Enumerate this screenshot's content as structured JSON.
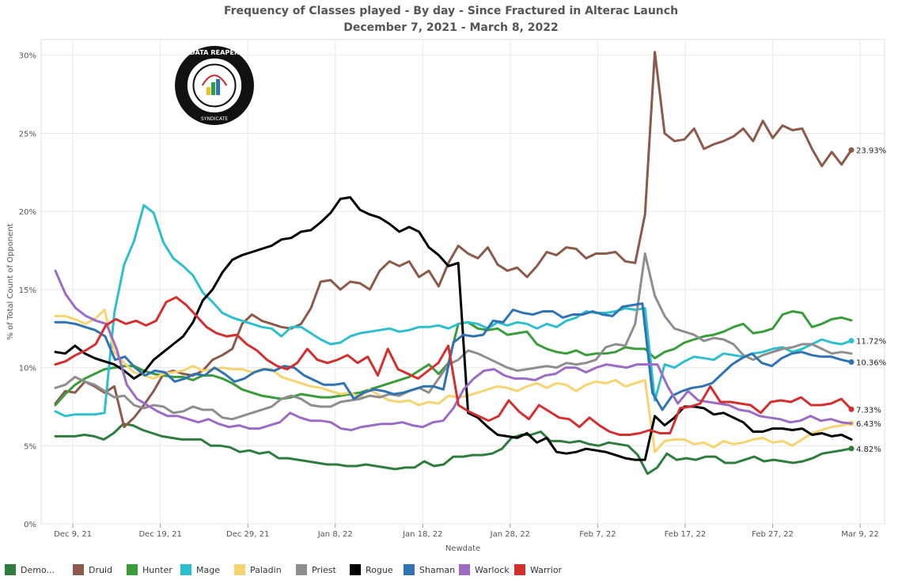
{
  "chart_data": {
    "type": "line",
    "title": "Frequency of Classes played - By day - Since Fractured in Alterac Launch",
    "subtitle": "December 7, 2021 - March 8, 2022",
    "xlabel": "Newdate",
    "ylabel": "% of Total Count of Opponent",
    "x_start": "2021-12-07",
    "x_end": "2022-03-08",
    "x_ticks": [
      "Dec 9, 21",
      "Dec 19, 21",
      "Dec 29, 21",
      "Jan 8, 22",
      "Jan 18, 22",
      "Jan 28, 22",
      "Feb 7, 22",
      "Feb 17, 22",
      "Feb 27, 22",
      "Mar 9, 22"
    ],
    "y_ticks": [
      "0%",
      "5%",
      "10%",
      "15%",
      "20%",
      "25%",
      "30%"
    ],
    "ylim": [
      0,
      31
    ],
    "grid": true,
    "legend_position": "bottom",
    "series": [
      {
        "name": "Demo...",
        "color": "#2e7d3e",
        "end_label": "4.82%",
        "values": [
          5.6,
          5.6,
          5.6,
          5.7,
          5.6,
          5.4,
          5.8,
          6.4,
          6.3,
          6.0,
          5.8,
          5.6,
          5.5,
          5.4,
          5.4,
          5.4,
          5.0,
          5.0,
          4.9,
          4.6,
          4.7,
          4.5,
          4.6,
          4.2,
          4.2,
          4.1,
          4.0,
          3.9,
          3.8,
          3.8,
          3.7,
          3.7,
          3.8,
          3.7,
          3.6,
          3.5,
          3.6,
          3.6,
          4.0,
          3.7,
          3.8,
          4.3,
          4.3,
          4.4,
          4.4,
          4.5,
          4.8,
          5.5,
          5.7,
          5.7,
          5.9,
          5.3,
          5.3,
          5.2,
          5.3,
          5.1,
          5.0,
          5.2,
          5.1,
          5.0,
          4.4,
          3.2,
          3.6,
          4.5,
          4.1,
          4.2,
          4.1,
          4.3,
          4.3,
          3.9,
          3.9,
          4.1,
          4.3,
          4.0,
          4.1,
          4.0,
          3.9,
          4.0,
          4.2,
          4.5,
          4.6,
          4.7,
          4.82
        ]
      },
      {
        "name": "Druid",
        "color": "#8b5a4a",
        "end_label": "23.93%",
        "values": [
          7.7,
          8.5,
          8.4,
          9.1,
          8.8,
          8.4,
          8.8,
          6.2,
          6.8,
          7.6,
          8.5,
          9.6,
          9.8,
          9.6,
          9.5,
          9.8,
          10.5,
          10.8,
          11.2,
          12.8,
          13.4,
          13.0,
          12.8,
          12.6,
          12.5,
          12.8,
          13.8,
          15.5,
          15.6,
          15.0,
          15.5,
          15.4,
          15.0,
          16.2,
          16.8,
          16.5,
          16.8,
          15.8,
          16.2,
          15.2,
          16.7,
          17.8,
          17.3,
          17.0,
          17.7,
          16.6,
          16.2,
          16.4,
          15.8,
          16.5,
          17.4,
          17.2,
          17.7,
          17.6,
          17.0,
          17.3,
          17.3,
          17.4,
          16.8,
          16.7,
          19.8,
          30.2,
          25.0,
          24.5,
          24.6,
          25.3,
          24.0,
          24.3,
          24.5,
          24.8,
          25.3,
          24.5,
          25.8,
          24.7,
          25.5,
          25.2,
          25.3,
          24.0,
          22.9,
          23.8,
          23.0,
          23.93
        ]
      },
      {
        "name": "Hunter",
        "color": "#3a9c3a",
        "end_label": "",
        "values": [
          7.6,
          8.3,
          8.9,
          9.3,
          9.6,
          9.9,
          10.0,
          10.1,
          10.1,
          9.8,
          9.6,
          9.5,
          9.4,
          9.4,
          9.2,
          9.5,
          9.5,
          9.3,
          9.0,
          8.6,
          8.4,
          8.2,
          8.1,
          8.0,
          8.1,
          8.3,
          8.2,
          8.1,
          8.1,
          8.2,
          8.3,
          8.4,
          8.6,
          8.8,
          9.0,
          9.2,
          9.4,
          9.8,
          10.2,
          9.6,
          10.3,
          12.8,
          12.9,
          12.5,
          12.4,
          12.5,
          12.1,
          12.2,
          12.3,
          11.5,
          11.2,
          11.0,
          10.9,
          11.1,
          10.8,
          10.9,
          10.9,
          11.0,
          11.3,
          11.2,
          11.2,
          10.6,
          11.0,
          11.2,
          11.6,
          11.8,
          12.0,
          12.1,
          12.3,
          12.6,
          12.8,
          12.2,
          12.3,
          12.5,
          13.4,
          13.6,
          13.5,
          12.6,
          12.8,
          13.1,
          13.2,
          13.03
        ]
      },
      {
        "name": "Mage",
        "color": "#2ebfcf",
        "end_label": "11.72%",
        "values": [
          7.2,
          6.9,
          7.0,
          7.0,
          7.0,
          7.1,
          13.5,
          16.6,
          18.1,
          20.4,
          19.9,
          18.0,
          17.0,
          16.5,
          15.9,
          14.8,
          14.2,
          13.5,
          13.2,
          13.0,
          12.8,
          12.6,
          12.5,
          12.0,
          12.6,
          12.6,
          12.2,
          11.8,
          11.5,
          11.6,
          12.0,
          12.2,
          12.3,
          12.4,
          12.5,
          12.3,
          12.4,
          12.6,
          12.6,
          12.7,
          12.5,
          12.8,
          12.9,
          12.8,
          12.5,
          12.9,
          12.7,
          12.9,
          12.8,
          12.5,
          12.8,
          12.6,
          13.0,
          13.2,
          13.6,
          13.5,
          13.5,
          13.6,
          13.8,
          13.7,
          13.8,
          7.9,
          10.2,
          10.0,
          10.4,
          10.7,
          10.6,
          10.5,
          10.9,
          10.8,
          10.7,
          10.9,
          11.0,
          11.2,
          11.3,
          11.0,
          11.2,
          11.5,
          11.8,
          11.6,
          11.5,
          11.72
        ]
      },
      {
        "name": "Paladin",
        "color": "#f5d471",
        "end_label": "6.43%",
        "values": [
          13.3,
          13.3,
          13.1,
          12.8,
          13.1,
          13.7,
          11.0,
          10.3,
          9.7,
          9.5,
          9.3,
          9.6,
          9.7,
          9.8,
          10.1,
          9.8,
          9.9,
          10.0,
          9.9,
          9.9,
          9.7,
          9.9,
          9.9,
          9.4,
          9.2,
          9.0,
          8.8,
          8.7,
          8.5,
          8.3,
          8.4,
          8.1,
          8.6,
          8.2,
          7.9,
          7.8,
          7.9,
          7.6,
          7.8,
          7.7,
          8.2,
          8.1,
          8.2,
          8.4,
          8.6,
          8.8,
          8.7,
          8.5,
          8.8,
          9.0,
          8.7,
          9.0,
          8.9,
          8.5,
          8.9,
          9.1,
          9.0,
          9.2,
          8.8,
          9.0,
          9.2,
          4.6,
          5.3,
          5.4,
          5.4,
          5.1,
          5.2,
          4.9,
          5.3,
          5.1,
          5.2,
          5.4,
          5.5,
          5.2,
          5.3,
          5.0,
          5.4,
          5.8,
          6.0,
          6.2,
          6.3,
          6.43
        ]
      },
      {
        "name": "Priest",
        "color": "#8e8e8e",
        "end_label": "",
        "values": [
          8.7,
          8.9,
          9.4,
          9.1,
          8.9,
          8.5,
          8.1,
          8.2,
          7.6,
          7.4,
          7.6,
          7.5,
          7.1,
          7.2,
          7.5,
          7.3,
          7.3,
          6.8,
          6.7,
          6.9,
          7.1,
          7.3,
          7.5,
          8.0,
          8.2,
          8.0,
          7.6,
          7.5,
          7.5,
          7.8,
          7.9,
          8.0,
          8.2,
          8.1,
          8.3,
          8.2,
          8.5,
          8.7,
          8.4,
          9.3,
          10.2,
          10.5,
          11.1,
          10.9,
          10.6,
          10.3,
          10.0,
          9.8,
          9.9,
          10.0,
          10.1,
          10.0,
          10.3,
          10.2,
          10.3,
          10.5,
          11.3,
          11.5,
          11.4,
          12.8,
          17.3,
          14.6,
          13.3,
          12.5,
          12.3,
          12.1,
          11.7,
          11.9,
          11.8,
          11.5,
          10.8,
          10.5,
          10.8,
          11.0,
          11.2,
          11.3,
          11.5,
          11.5,
          11.2,
          10.9,
          11.0,
          10.9
        ]
      },
      {
        "name": "Rogue",
        "color": "#000000",
        "end_label": "",
        "values": [
          11.0,
          10.9,
          11.4,
          10.9,
          10.6,
          10.4,
          10.2,
          9.8,
          9.3,
          9.7,
          10.5,
          11.0,
          11.5,
          12.0,
          12.9,
          14.3,
          15.0,
          16.1,
          16.9,
          17.2,
          17.4,
          17.6,
          17.8,
          18.2,
          18.3,
          18.7,
          18.8,
          19.3,
          19.9,
          20.8,
          20.9,
          20.1,
          19.8,
          19.6,
          19.2,
          18.7,
          19.0,
          18.7,
          17.7,
          17.2,
          16.5,
          16.7,
          7.1,
          6.8,
          6.2,
          5.7,
          5.6,
          5.5,
          5.8,
          5.2,
          5.5,
          4.6,
          4.5,
          4.6,
          4.8,
          4.7,
          4.6,
          4.4,
          4.2,
          4.1,
          4.1,
          6.9,
          6.3,
          6.8,
          7.5,
          7.5,
          7.4,
          7.0,
          7.1,
          6.8,
          6.5,
          5.9,
          5.9,
          6.1,
          6.1,
          6.0,
          6.1,
          5.7,
          5.8,
          5.6,
          5.7,
          5.4
        ]
      },
      {
        "name": "Shaman",
        "color": "#2f73b3",
        "end_label": "10.36%",
        "values": [
          12.9,
          12.9,
          12.8,
          12.6,
          12.4,
          12.0,
          10.5,
          10.7,
          10.0,
          9.5,
          9.8,
          9.7,
          9.1,
          9.3,
          9.6,
          9.5,
          10.0,
          9.6,
          9.1,
          9.3,
          9.7,
          9.9,
          9.8,
          10.1,
          10.0,
          9.5,
          9.2,
          8.9,
          8.9,
          9.0,
          8.0,
          8.4,
          8.6,
          8.5,
          8.3,
          8.4,
          8.6,
          8.8,
          8.8,
          8.6,
          11.6,
          12.1,
          12.0,
          12.1,
          13.0,
          12.9,
          13.7,
          13.5,
          13.4,
          13.6,
          13.6,
          13.2,
          13.4,
          13.4,
          13.6,
          13.4,
          13.3,
          13.9,
          14.0,
          14.1,
          8.4,
          7.3,
          8.2,
          8.5,
          8.7,
          8.8,
          9.0,
          9.6,
          10.2,
          10.6,
          10.9,
          10.3,
          10.1,
          10.6,
          10.9,
          11.0,
          10.8,
          10.7,
          10.7,
          10.5,
          10.36
        ]
      },
      {
        "name": "Warlock",
        "color": "#9b6cc4",
        "end_label": "",
        "values": [
          16.2,
          14.7,
          13.8,
          13.3,
          13.0,
          12.8,
          11.2,
          8.9,
          8.0,
          7.6,
          7.2,
          6.9,
          6.9,
          6.7,
          6.5,
          6.7,
          6.4,
          6.2,
          6.3,
          6.1,
          6.1,
          6.3,
          6.5,
          7.1,
          6.8,
          6.6,
          6.6,
          6.5,
          6.1,
          6.0,
          6.2,
          6.3,
          6.4,
          6.4,
          6.5,
          6.3,
          6.2,
          6.5,
          6.6,
          7.4,
          8.6,
          9.3,
          9.8,
          9.9,
          9.5,
          9.3,
          9.3,
          9.2,
          9.5,
          9.6,
          10.0,
          10.0,
          9.7,
          10.0,
          10.2,
          10.1,
          10.0,
          10.2,
          10.2,
          10.2,
          8.8,
          7.7,
          8.5,
          7.9,
          7.8,
          7.7,
          7.6,
          7.3,
          7.2,
          6.9,
          6.8,
          6.7,
          6.5,
          6.6,
          6.9,
          6.6,
          6.7,
          6.5,
          6.43
        ]
      },
      {
        "name": "Warrior",
        "color": "#d32f2f",
        "end_label": "7.33%",
        "values": [
          10.2,
          10.4,
          10.8,
          11.1,
          11.5,
          12.7,
          13.1,
          12.8,
          13.0,
          12.7,
          13.0,
          14.2,
          14.5,
          14.0,
          13.3,
          12.6,
          12.2,
          12.0,
          12.1,
          11.5,
          11.1,
          10.5,
          10.1,
          9.9,
          10.3,
          11.2,
          10.5,
          10.3,
          10.5,
          10.8,
          10.3,
          10.7,
          9.5,
          11.2,
          9.9,
          9.6,
          9.3,
          9.8,
          10.3,
          11.4,
          7.6,
          7.2,
          6.9,
          6.6,
          6.9,
          7.9,
          7.2,
          6.7,
          7.6,
          7.2,
          6.8,
          6.7,
          6.2,
          6.8,
          6.3,
          5.9,
          5.7,
          5.7,
          5.8,
          6.0,
          5.8,
          5.8,
          7.4,
          7.5,
          7.7,
          8.8,
          7.8,
          7.8,
          7.7,
          7.6,
          7.1,
          7.8,
          7.9,
          7.8,
          8.1,
          7.6,
          7.6,
          7.7,
          8.0,
          7.33
        ]
      }
    ]
  },
  "logo": {
    "text_top": "DATA REAPER REPORT",
    "text_bottom": "VICIOUS SYNDICATE PRESENTS"
  },
  "colors": {
    "grid": "#e8e8e8",
    "axis_text": "#555555"
  }
}
